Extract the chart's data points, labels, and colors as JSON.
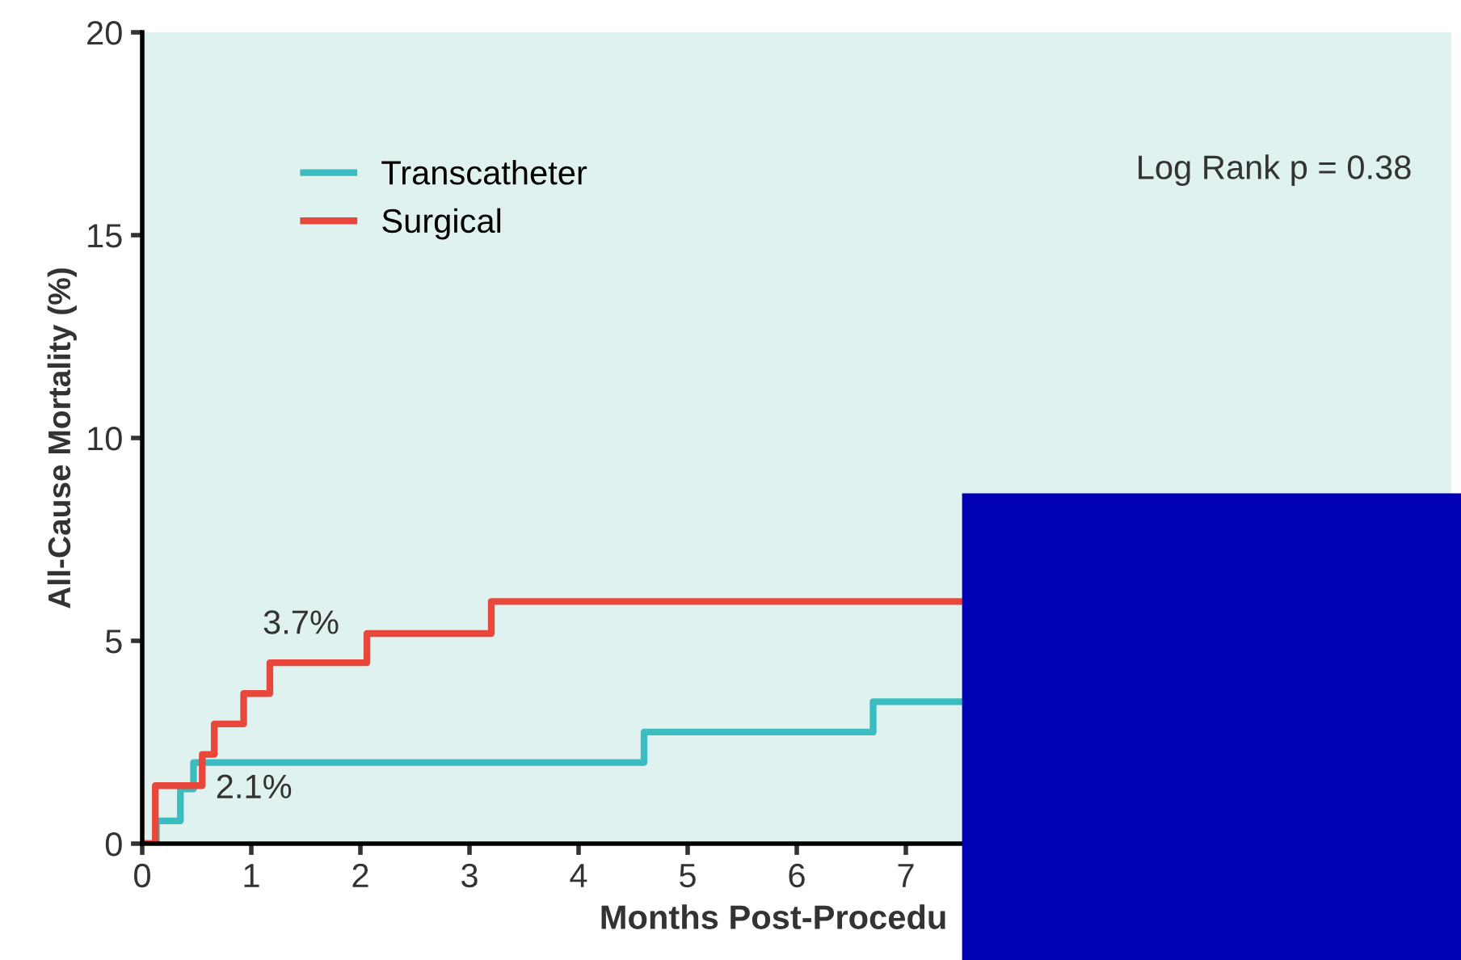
{
  "chart_data": {
    "type": "step",
    "xlabel": "Months Post-Procedu",
    "ylabel": "All-Cause Mortality (%)",
    "xlim": [
      0,
      12
    ],
    "ylim": [
      0,
      20
    ],
    "xticks": [
      0,
      1,
      2,
      3,
      4,
      5,
      6,
      7
    ],
    "yticks": [
      0,
      5,
      10,
      15,
      20
    ],
    "series": [
      {
        "name": "Transcatheter",
        "color": "#3bbcc0",
        "x": [
          0,
          0.13,
          0.35,
          0.47,
          4.6,
          6.7,
          7.54
        ],
        "values": [
          0,
          0.56,
          1.35,
          2.0,
          2.75,
          3.5,
          3.5
        ]
      },
      {
        "name": "Surgical",
        "color": "#e8473c",
        "x": [
          0,
          0.12,
          0.55,
          0.66,
          0.93,
          1.17,
          2.06,
          3.2,
          7.54
        ],
        "values": [
          0,
          1.43,
          2.2,
          2.95,
          3.7,
          4.46,
          5.18,
          5.97,
          5.97
        ]
      }
    ],
    "annotations": [
      "3.7%",
      "2.1%",
      "Log Rank p = 0.38"
    ],
    "legend": "top left",
    "grid": false,
    "line_style": "solid",
    "marker": "none"
  }
}
